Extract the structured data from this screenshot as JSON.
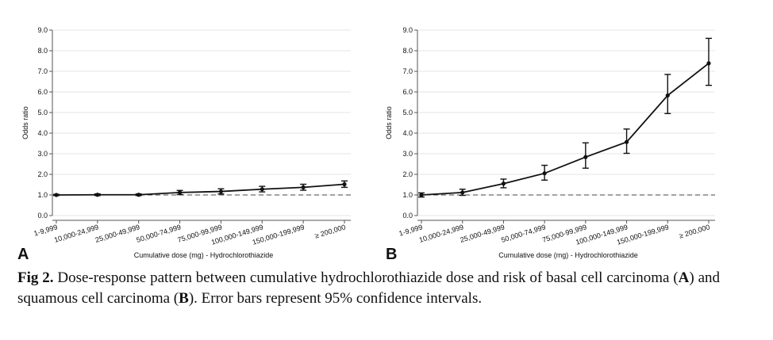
{
  "chart_data": [
    {
      "type": "line",
      "panel": "A",
      "xlabel": "Cumulative dose (mg) - Hydrochlorothiazide",
      "ylabel": "Odds ratio",
      "ylim": [
        0,
        9
      ],
      "yticks": [
        "0.0",
        "1.0",
        "2.0",
        "3.0",
        "4.0",
        "5.0",
        "6.0",
        "7.0",
        "8.0",
        "9.0"
      ],
      "reference_line": 1.0,
      "grid": true,
      "categories": [
        "1-9,999",
        "10,000-24,999",
        "25,000-49,999",
        "50,000-74,999",
        "75,000-99,999",
        "100,000-149,999",
        "150,000-199,999",
        "≥ 200,000"
      ],
      "values": [
        1.0,
        1.01,
        1.01,
        1.12,
        1.17,
        1.28,
        1.37,
        1.52
      ],
      "ci_lower": [
        0.97,
        0.97,
        0.97,
        1.02,
        1.05,
        1.15,
        1.23,
        1.37
      ],
      "ci_upper": [
        1.03,
        1.05,
        1.05,
        1.22,
        1.3,
        1.42,
        1.52,
        1.68
      ]
    },
    {
      "type": "line",
      "panel": "B",
      "xlabel": "Cumulative dose (mg) - Hydrochlorothiazide",
      "ylabel": "Odds ratio",
      "ylim": [
        0,
        9
      ],
      "yticks": [
        "0.0",
        "1.0",
        "2.0",
        "3.0",
        "4.0",
        "5.0",
        "6.0",
        "7.0",
        "8.0",
        "9.0"
      ],
      "reference_line": 1.0,
      "grid": true,
      "categories": [
        "1-9,999",
        "10,000-24,999",
        "25,000-49,999",
        "50,000-74,999",
        "75,000-99,999",
        "100,000-149,999",
        "150,000-199,999",
        "≥ 200,000"
      ],
      "values": [
        1.0,
        1.12,
        1.55,
        2.05,
        2.84,
        3.57,
        5.83,
        7.39
      ],
      "ci_lower": [
        0.9,
        0.98,
        1.35,
        1.72,
        2.3,
        3.02,
        4.95,
        6.32
      ],
      "ci_upper": [
        1.1,
        1.28,
        1.77,
        2.44,
        3.53,
        4.2,
        6.85,
        8.6
      ]
    }
  ],
  "caption": {
    "fig_label": "Fig 2.",
    "part1": " Dose-response pattern between cumulative hydrochlorothiazide dose and risk of basal cell carcinoma (",
    "a": "A",
    "part2": ") and squamous cell carcinoma (",
    "b": "B",
    "part3": "). Error bars represent 95% confidence intervals."
  }
}
